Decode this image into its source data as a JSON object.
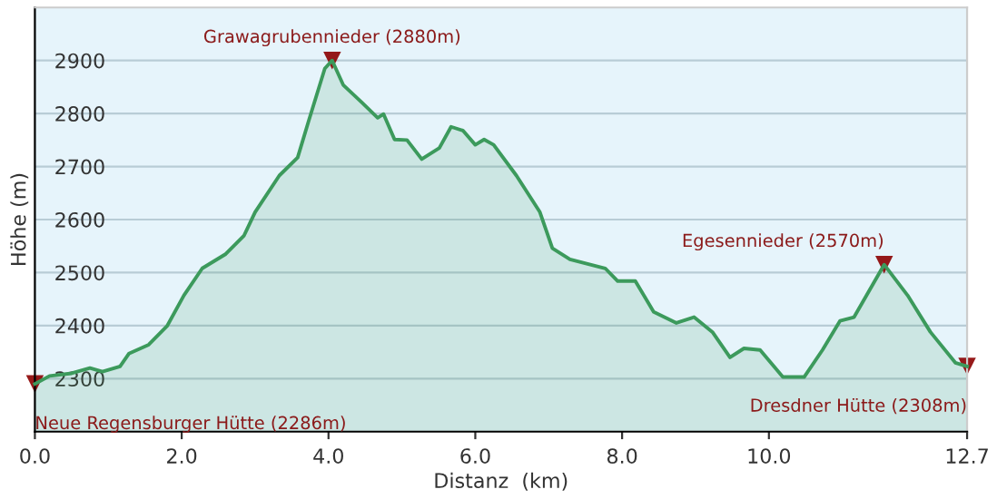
{
  "chart_data": {
    "type": "area",
    "xlabel": "Distanz  (km)",
    "ylabel": "Höhe (m)",
    "x": [
      0,
      0.2,
      0.5,
      0.75,
      0.92,
      1.16,
      1.28,
      1.55,
      1.8,
      2.03,
      2.28,
      2.6,
      2.85,
      3.0,
      3.33,
      3.58,
      3.73,
      3.95,
      4.05,
      4.2,
      4.46,
      4.67,
      4.75,
      4.9,
      5.07,
      5.27,
      5.51,
      5.67,
      5.83,
      6.0,
      6.12,
      6.25,
      6.56,
      6.88,
      7.05,
      7.29,
      7.77,
      7.94,
      8.18,
      8.43,
      8.74,
      8.98,
      9.23,
      9.47,
      9.66,
      9.88,
      10.19,
      10.48,
      10.73,
      10.97,
      11.16,
      11.57,
      11.89,
      12.2,
      12.54,
      12.7
    ],
    "series": [
      {
        "color": "#3c9a5c",
        "values": [
          2290,
          2305,
          2310,
          2320,
          2313,
          2323,
          2347,
          2364,
          2399,
          2457,
          2508,
          2535,
          2570,
          2614,
          2683,
          2717,
          2786,
          2885,
          2900,
          2854,
          2820,
          2792,
          2799,
          2751,
          2750,
          2714,
          2735,
          2775,
          2768,
          2741,
          2751,
          2741,
          2683,
          2614,
          2546,
          2525,
          2508,
          2484,
          2484,
          2426,
          2405,
          2416,
          2388,
          2340,
          2357,
          2354,
          2303,
          2303,
          2354,
          2409,
          2416,
          2515,
          2457,
          2388,
          2330,
          2323
        ]
      }
    ],
    "xlim": [
      0,
      12.7
    ],
    "ylim": [
      2200,
      3000
    ],
    "xticks": [
      {
        "value": 0,
        "label": "0.0"
      },
      {
        "value": 2,
        "label": "2.0"
      },
      {
        "value": 4,
        "label": "4.0"
      },
      {
        "value": 6,
        "label": "6.0"
      },
      {
        "value": 8,
        "label": "8.0"
      },
      {
        "value": 10,
        "label": "10.0"
      },
      12.7
    ],
    "yticks": [
      2300,
      2400,
      2500,
      2600,
      2700,
      2800,
      2900
    ],
    "grid": "y",
    "annotations": [
      {
        "text": "Neue Regensburger Hütte (2286m)",
        "x": 0,
        "y": 2290
      },
      {
        "text": "Grawagrubennieder (2880m)",
        "x": 4.05,
        "y": 2900
      },
      {
        "text": "Egesennieder (2570m)",
        "x": 11.57,
        "y": 2515
      },
      {
        "text": "Dresdner Hütte (2308m)",
        "x": 12.7,
        "y": 2323
      }
    ]
  }
}
